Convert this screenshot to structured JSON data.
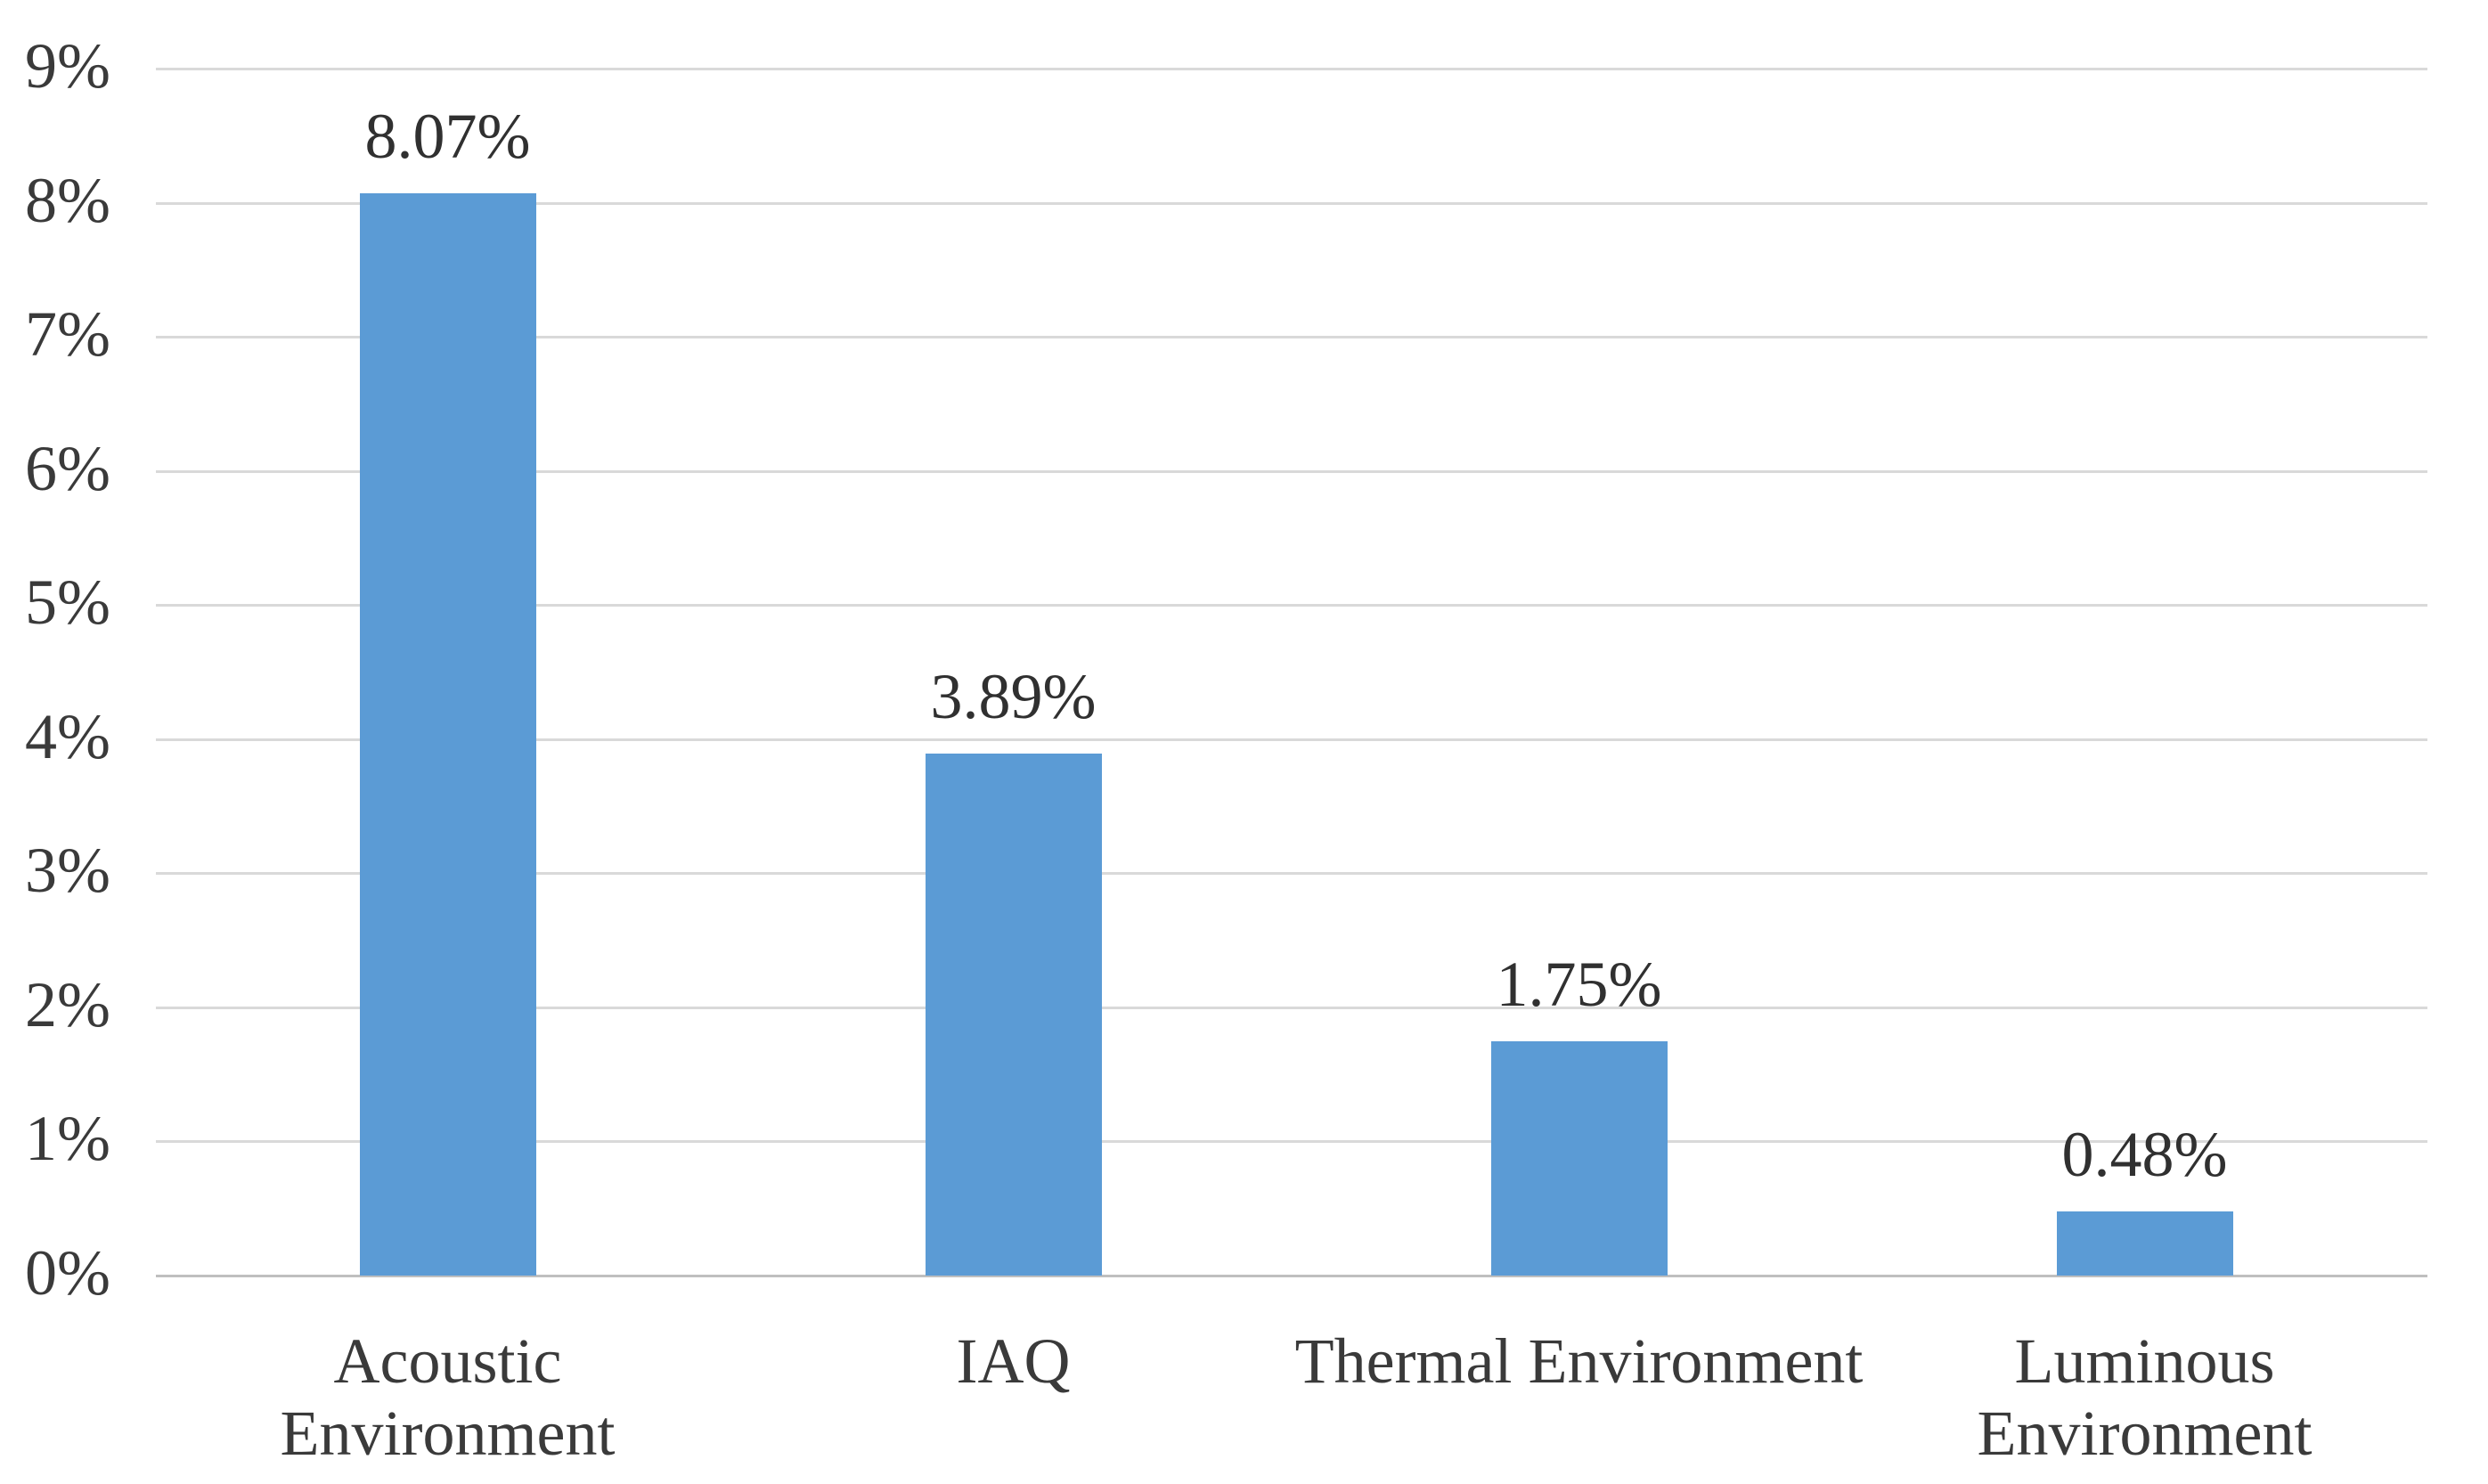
{
  "chart_data": {
    "type": "bar",
    "title": "",
    "xlabel": "",
    "ylabel": "",
    "categories": [
      "Acoustic Environment",
      "IAQ",
      "Thermal Environment",
      "Luminous Environment"
    ],
    "category_label_lines": [
      [
        "Acoustic",
        "Environment"
      ],
      [
        "IAQ"
      ],
      [
        "Thermal Environment"
      ],
      [
        "Luminous",
        "Environment"
      ]
    ],
    "values": [
      8.07,
      3.89,
      1.75,
      0.48
    ],
    "data_labels": [
      "8.07%",
      "3.89%",
      "1.75%",
      "0.48%"
    ],
    "ylim": [
      0,
      9
    ],
    "ytick_step": 1,
    "ytick_labels": [
      "0%",
      "1%",
      "2%",
      "3%",
      "4%",
      "5%",
      "6%",
      "7%",
      "8%",
      "9%"
    ],
    "grid": true,
    "legend": false,
    "colors": {
      "bar": "#5B9BD5",
      "gridline": "#D9D9D9",
      "axis_line": "#BFBFBF",
      "text": "#3A3A3A",
      "background": "#FFFFFF"
    }
  }
}
